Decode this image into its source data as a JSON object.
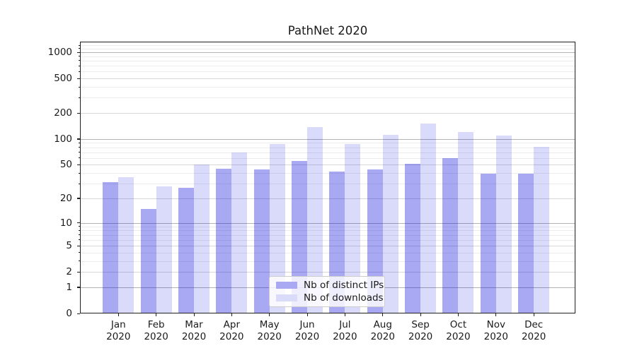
{
  "chart_data": {
    "type": "bar",
    "title": "PathNet 2020",
    "categories": [
      "Jan",
      "Feb",
      "Mar",
      "Apr",
      "May",
      "Jun",
      "Jul",
      "Aug",
      "Sep",
      "Oct",
      "Nov",
      "Dec"
    ],
    "category_year": "2020",
    "series": [
      {
        "name": "Nb of distinct IPs",
        "fill": "rgba(10,10,220,0.35)",
        "swatch": "#a9a9f3",
        "values": [
          31,
          15,
          27,
          45,
          44,
          56,
          42,
          44,
          51,
          60,
          39,
          39
        ]
      },
      {
        "name": "Nb of downloads",
        "fill": "rgba(10,10,220,0.15)",
        "swatch": "#dadaf9",
        "values": [
          36,
          28,
          50,
          70,
          87,
          138,
          87,
          112,
          150,
          120,
          110,
          81
        ]
      }
    ],
    "yscale": "log1p",
    "ylim": [
      0,
      1300
    ],
    "ytick_values": [
      0,
      1,
      2,
      5,
      10,
      20,
      50,
      100,
      200,
      500,
      1000
    ],
    "ytick_labels": [
      "0",
      "1",
      "2",
      "5",
      "10",
      "20",
      "50",
      "100",
      "200",
      "500",
      "1000"
    ],
    "minor_gridline_values": [
      3,
      4,
      6,
      7,
      8,
      9,
      30,
      40,
      60,
      70,
      80,
      90,
      300,
      400,
      600,
      700,
      800,
      900,
      1100,
      1200
    ],
    "grid": true,
    "legend_position": "lower center",
    "colors": {
      "grid_major": "#b2b2b2",
      "grid_minor_labeled": "#d7d7d7",
      "grid_minor_faint": "#ececec",
      "spine": "#1f1f1f",
      "background": "#ffffff"
    }
  }
}
